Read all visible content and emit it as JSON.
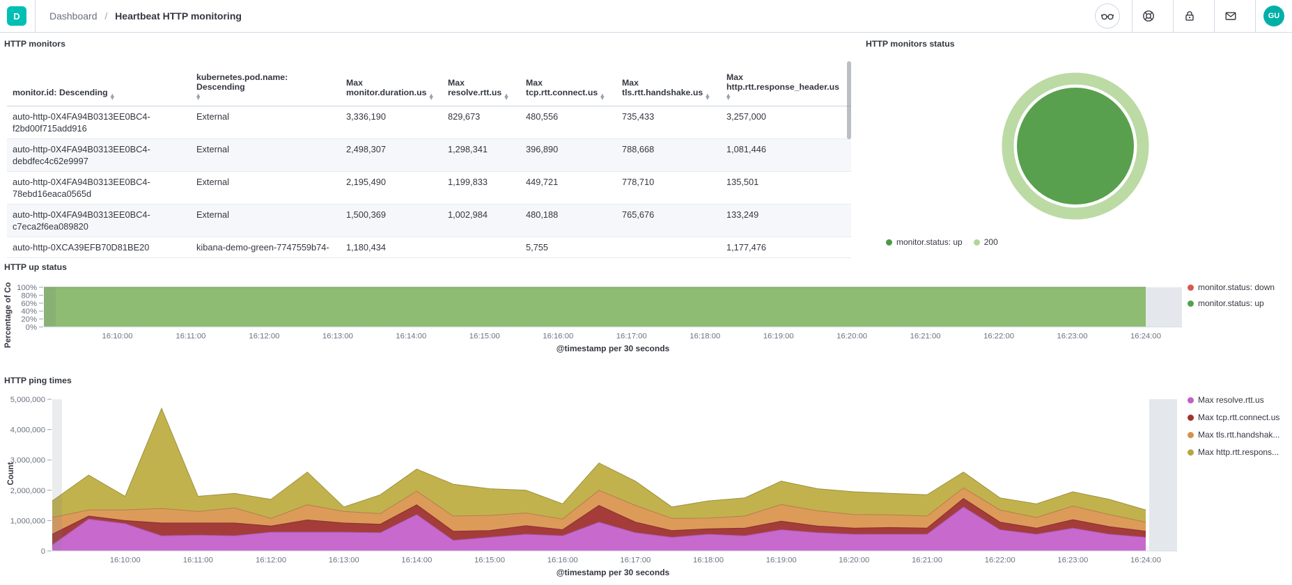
{
  "header": {
    "logo_text": "D",
    "breadcrumb": {
      "root": "Dashboard",
      "separator": "/",
      "current": "Heartbeat HTTP monitoring"
    },
    "avatar_initials": "GU"
  },
  "panels": {
    "monitors": {
      "title": "HTTP monitors",
      "table": {
        "columns": [
          "monitor.id: Descending",
          "kubernetes.pod.name: Descending",
          "Max monitor.duration.us",
          "Max resolve.rtt.us",
          "Max tcp.rtt.connect.us",
          "Max tls.rtt.handshake.us",
          "Max http.rtt.response_header.us"
        ],
        "rows": [
          [
            "auto-http-0X4FA94B0313EE0BC4-f2bd00f715add916",
            "External",
            "3,336,190",
            "829,673",
            "480,556",
            "735,433",
            "3,257,000"
          ],
          [
            "auto-http-0X4FA94B0313EE0BC4-debdfec4c62e9997",
            "External",
            "2,498,307",
            "1,298,341",
            "396,890",
            "788,668",
            "1,081,446"
          ],
          [
            "auto-http-0X4FA94B0313EE0BC4-78ebd16eaca0565d",
            "External",
            "2,195,490",
            "1,199,833",
            "449,721",
            "778,710",
            "135,501"
          ],
          [
            "auto-http-0X4FA94B0313EE0BC4-c7eca2f6ea089820",
            "External",
            "1,500,369",
            "1,002,984",
            "480,188",
            "765,676",
            "133,249"
          ],
          [
            "auto-http-0XCA39EFB70D81BE20",
            "kibana-demo-green-7747559b74-",
            "1,180,434",
            "",
            "5,755",
            "",
            "1,177,476"
          ]
        ]
      }
    },
    "status": {
      "title": "HTTP monitors status"
    },
    "up": {
      "title": "HTTP up status",
      "ylabel": "Percentage of Co",
      "xlabel": "@timestamp per 30 seconds"
    },
    "ping": {
      "title": "HTTP ping times",
      "ylabel": "Count",
      "xlabel": "@timestamp per 30 seconds"
    }
  },
  "chart_data": [
    {
      "id": "status_donut",
      "type": "pie",
      "title": "HTTP monitors status",
      "rings": [
        {
          "label": "monitor.status: up",
          "value": 100,
          "color": "#58a04d",
          "dot": "#4c9945"
        },
        {
          "label": "200",
          "value": 100,
          "color": "#bcdaa4",
          "dot": "#b2d698"
        }
      ],
      "legend_position": "bottom"
    },
    {
      "id": "up_status",
      "type": "area",
      "title": "HTTP up status",
      "ylabel": "Percentage of Co",
      "xlabel": "@timestamp per 30 seconds",
      "ylim": [
        0,
        100
      ],
      "x": [
        "16:09:00",
        "16:09:30",
        "16:10:00",
        "16:10:30",
        "16:11:00",
        "16:11:30",
        "16:12:00",
        "16:12:30",
        "16:13:00",
        "16:13:30",
        "16:14:00",
        "16:14:30",
        "16:15:00",
        "16:15:30",
        "16:16:00",
        "16:16:30",
        "16:17:00",
        "16:17:30",
        "16:18:00",
        "16:18:30",
        "16:19:00",
        "16:19:30",
        "16:20:00",
        "16:20:30",
        "16:21:00",
        "16:21:30",
        "16:22:00",
        "16:22:30",
        "16:23:00",
        "16:23:30",
        "16:24:00"
      ],
      "xticks": [
        "16:10:00",
        "16:11:00",
        "16:12:00",
        "16:13:00",
        "16:14:00",
        "16:15:00",
        "16:16:00",
        "16:17:00",
        "16:18:00",
        "16:19:00",
        "16:20:00",
        "16:21:00",
        "16:22:00",
        "16:23:00",
        "16:24:00"
      ],
      "yticks": [
        {
          "v": 0,
          "label": "0%"
        },
        {
          "v": 20,
          "label": "20%"
        },
        {
          "v": 40,
          "label": "40%"
        },
        {
          "v": 60,
          "label": "60%"
        },
        {
          "v": 80,
          "label": "80%"
        },
        {
          "v": 100,
          "label": "100%"
        }
      ],
      "series": [
        {
          "name": "monitor.status: down",
          "color": "#d9594e",
          "dot": "#d9594e",
          "values": [
            0,
            0,
            0,
            0,
            0,
            0,
            0,
            0,
            0,
            0,
            0,
            0,
            0,
            0,
            0,
            0,
            0,
            0,
            0,
            0,
            0,
            0,
            0,
            0,
            0,
            0,
            0,
            0,
            0,
            0,
            0
          ]
        },
        {
          "name": "monitor.status: up",
          "color": "#8ebc72",
          "dot": "#54a14c",
          "values": [
            100,
            100,
            100,
            100,
            100,
            100,
            100,
            100,
            100,
            100,
            100,
            100,
            100,
            100,
            100,
            100,
            100,
            100,
            100,
            100,
            100,
            100,
            100,
            100,
            100,
            100,
            100,
            100,
            100,
            100,
            100
          ]
        }
      ]
    },
    {
      "id": "ping_times",
      "type": "area-stacked",
      "title": "HTTP ping times",
      "ylabel": "Count",
      "xlabel": "@timestamp per 30 seconds",
      "ylim": [
        0,
        5000000
      ],
      "x": [
        "16:09:00",
        "16:09:30",
        "16:10:00",
        "16:10:30",
        "16:11:00",
        "16:11:30",
        "16:12:00",
        "16:12:30",
        "16:13:00",
        "16:13:30",
        "16:14:00",
        "16:14:30",
        "16:15:00",
        "16:15:30",
        "16:16:00",
        "16:16:30",
        "16:17:00",
        "16:17:30",
        "16:18:00",
        "16:18:30",
        "16:19:00",
        "16:19:30",
        "16:20:00",
        "16:20:30",
        "16:21:00",
        "16:21:30",
        "16:22:00",
        "16:22:30",
        "16:23:00",
        "16:23:30",
        "16:24:00"
      ],
      "xticks": [
        "16:10:00",
        "16:11:00",
        "16:12:00",
        "16:13:00",
        "16:14:00",
        "16:15:00",
        "16:16:00",
        "16:17:00",
        "16:18:00",
        "16:19:00",
        "16:20:00",
        "16:21:00",
        "16:22:00",
        "16:23:00",
        "16:24:00"
      ],
      "yticks": [
        {
          "v": 0,
          "label": "0"
        },
        {
          "v": 1000000,
          "label": "1,000,000"
        },
        {
          "v": 2000000,
          "label": "2,000,000"
        },
        {
          "v": 3000000,
          "label": "3,000,000"
        },
        {
          "v": 4000000,
          "label": "4,000,000"
        },
        {
          "v": 5000000,
          "label": "5,000,000"
        }
      ],
      "series": [
        {
          "name": "Max resolve.rtt.us",
          "color": "#c869ce",
          "dot": "#c05fc4",
          "values": [
            200000,
            1050000,
            900000,
            500000,
            520000,
            500000,
            620000,
            620000,
            620000,
            600000,
            1200000,
            350000,
            450000,
            550000,
            500000,
            950000,
            600000,
            450000,
            550000,
            500000,
            700000,
            600000,
            550000,
            550000,
            550000,
            1450000,
            700000,
            550000,
            750000,
            550000,
            450000
          ]
        },
        {
          "name": "Max tcp.rtt.connect.us",
          "color": "#a43c39",
          "dot": "#a0342c",
          "values": [
            350000,
            100000,
            100000,
            420000,
            400000,
            420000,
            200000,
            400000,
            300000,
            280000,
            320000,
            300000,
            220000,
            280000,
            200000,
            550000,
            350000,
            220000,
            180000,
            250000,
            280000,
            220000,
            200000,
            220000,
            200000,
            280000,
            250000,
            200000,
            280000,
            250000,
            200000
          ]
        },
        {
          "name": "Max tls.rtt.handshak...",
          "color": "#dd9b5a",
          "dot": "#d8904f",
          "values": [
            550000,
            200000,
            350000,
            480000,
            380000,
            500000,
            250000,
            500000,
            380000,
            350000,
            450000,
            500000,
            500000,
            420000,
            350000,
            500000,
            550000,
            400000,
            350000,
            400000,
            550000,
            500000,
            450000,
            420000,
            400000,
            350000,
            400000,
            350000,
            450000,
            400000,
            300000
          ]
        },
        {
          "name": "Max http.rtt.respons...",
          "color": "#c1b24d",
          "dot": "#b3a73e",
          "values": [
            550000,
            1150000,
            450000,
            3300000,
            500000,
            480000,
            630000,
            1080000,
            150000,
            620000,
            730000,
            1050000,
            880000,
            750000,
            500000,
            900000,
            800000,
            380000,
            570000,
            600000,
            770000,
            730000,
            750000,
            710000,
            700000,
            520000,
            400000,
            450000,
            470000,
            500000,
            400000
          ]
        }
      ]
    }
  ]
}
